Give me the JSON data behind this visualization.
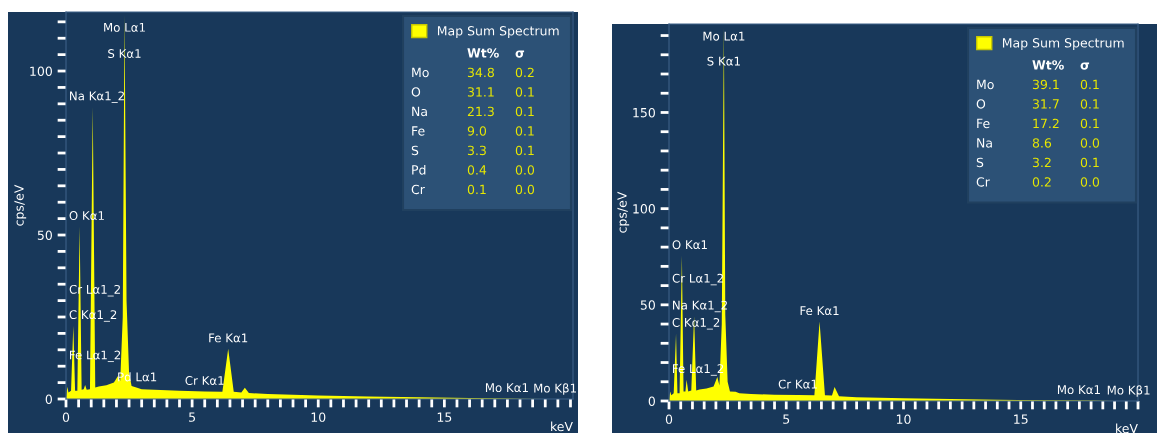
{
  "chart_data": [
    {
      "type": "area",
      "xlabel": "keV",
      "ylabel": "cps/eV",
      "legend": "top right",
      "x": [
        0,
        0.05,
        0.1,
        0.2,
        0.29,
        0.36,
        0.45,
        0.54,
        0.62,
        0.7,
        0.76,
        0.82,
        0.95,
        1.06,
        1.16,
        1.3,
        1.6,
        1.9,
        2.06,
        2.15,
        2.25,
        2.32,
        2.4,
        2.5,
        2.6,
        2.82,
        3.0,
        3.5,
        4.5,
        5.5,
        6.2,
        6.43,
        6.65,
        6.95,
        7.09,
        7.25,
        8,
        9,
        10,
        12,
        14,
        16,
        18,
        19,
        20
      ],
      "series": [
        {
          "name": "Map Sum Spectrum",
          "color": "#ffff00",
          "values": [
            0,
            3.7,
            2,
            2.5,
            22.3,
            2.5,
            2.5,
            52.6,
            2.8,
            3,
            4.3,
            2.8,
            3,
            89,
            3.5,
            3.8,
            4.2,
            5,
            7,
            5.5,
            25,
            117,
            30,
            8,
            4,
            3.4,
            3,
            2.8,
            2.5,
            2.3,
            2.2,
            15.3,
            2.2,
            2.0,
            3.4,
            1.8,
            1.5,
            1.3,
            1.1,
            0.8,
            0.5,
            0.3,
            0.1,
            0,
            0
          ]
        }
      ],
      "xlim": [
        0,
        20.1
      ],
      "ylim": [
        0,
        118
      ],
      "xticks": [
        0,
        {
          "value": 0.5,
          "label": null
        },
        {
          "value": 1,
          "label": null
        },
        {
          "value": 1.5,
          "label": null
        },
        {
          "value": 2,
          "label": null
        },
        {
          "value": 2.5,
          "label": null
        },
        {
          "value": 3,
          "label": null
        },
        {
          "value": 3.5,
          "label": null
        },
        {
          "value": 4,
          "label": null
        },
        {
          "value": 4.5,
          "label": null
        },
        5,
        {
          "value": 5.5,
          "label": null
        },
        {
          "value": 6,
          "label": null
        },
        {
          "value": 6.5,
          "label": null
        },
        {
          "value": 7,
          "label": null
        },
        {
          "value": 7.5,
          "label": null
        },
        {
          "value": 8,
          "label": null
        },
        {
          "value": 8.5,
          "label": null
        },
        {
          "value": 9,
          "label": null
        },
        {
          "value": 9.5,
          "label": null
        },
        10,
        {
          "value": 10.5,
          "label": null
        },
        {
          "value": 11,
          "label": null
        },
        {
          "value": 11.5,
          "label": null
        },
        {
          "value": 12,
          "label": null
        },
        {
          "value": 12.5,
          "label": null
        },
        {
          "value": 13,
          "label": null
        },
        {
          "value": 13.5,
          "label": null
        },
        {
          "value": 14,
          "label": null
        },
        {
          "value": 14.5,
          "label": null
        },
        15,
        {
          "value": 15.5,
          "label": null
        },
        {
          "value": 16,
          "label": null
        },
        {
          "value": 16.5,
          "label": null
        },
        {
          "value": 17,
          "label": null
        },
        {
          "value": 17.5,
          "label": null
        },
        {
          "value": 18,
          "label": null
        },
        {
          "value": 18.5,
          "label": null
        },
        {
          "value": 19,
          "label": null
        },
        {
          "value": 19.5,
          "label": null
        },
        {
          "value": 20,
          "label": null
        }
      ],
      "yticks": [
        0,
        {
          "value": 5,
          "label": null
        },
        {
          "value": 10,
          "label": null
        },
        {
          "value": 15,
          "label": null
        },
        {
          "value": 20,
          "label": null
        },
        {
          "value": 25,
          "label": null
        },
        {
          "value": 30,
          "label": null
        },
        {
          "value": 35,
          "label": null
        },
        {
          "value": 40,
          "label": null
        },
        {
          "value": 45,
          "label": null
        },
        50,
        {
          "value": 55,
          "label": null
        },
        {
          "value": 60,
          "label": null
        },
        {
          "value": 65,
          "label": null
        },
        {
          "value": 70,
          "label": null
        },
        {
          "value": 75,
          "label": null
        },
        {
          "value": 80,
          "label": null
        },
        {
          "value": 85,
          "label": null
        },
        {
          "value": 90,
          "label": null
        },
        {
          "value": 95,
          "label": null
        },
        100,
        {
          "value": 105,
          "label": null
        },
        {
          "value": 110,
          "label": null
        },
        {
          "value": 115,
          "label": null
        }
      ],
      "annotations": [
        {
          "text": "Mo Lα1",
          "x": 2.32,
          "y": 110
        },
        {
          "text": "S Kα1",
          "x": 2.32,
          "y": 102
        },
        {
          "text": "Na Kα1_2",
          "x": 1.06,
          "y": 89
        },
        {
          "text": "O Kα1",
          "x": 0.54,
          "y": 52.6
        },
        {
          "text": "Cr Lα1_2",
          "x": 0.5,
          "y": 30
        },
        {
          "text": "C Kα1_2",
          "x": 0.29,
          "y": 22.3
        },
        {
          "text": "Fe Lα1_2",
          "x": 0.234,
          "y": 10
        },
        {
          "text": "Pd Lα1",
          "x": 2.82,
          "y": 3.4
        },
        {
          "text": "Cr Kα1",
          "x": 5.5,
          "y": 2.3
        },
        {
          "text": "Fe Kα1",
          "x": 6.43,
          "y": 15.3
        },
        {
          "text": "Mo Kα1",
          "x": 17.48,
          "y": 0.15
        },
        {
          "text": "Mo Kβ1",
          "x": 19.6,
          "y": 0
        },
        "Wt%",
        "σ",
        "Mo",
        "34.8",
        "0.2",
        "O",
        "31.1",
        "0.1",
        "Na",
        "21.3",
        "0.1",
        "Fe",
        "9.0",
        "0.1",
        "S",
        "3.3",
        "0.1",
        "Pd",
        "0.4",
        "0.0",
        "Cr",
        "0.1",
        "0.0"
      ]
    },
    {
      "type": "area",
      "xlabel": "keV",
      "ylabel": "cps/eV",
      "legend": "top right",
      "x": [
        0,
        0.05,
        0.1,
        0.2,
        0.3,
        0.36,
        0.45,
        0.55,
        0.62,
        0.7,
        0.75,
        0.82,
        0.95,
        1.07,
        1.16,
        1.3,
        1.6,
        1.9,
        2.06,
        2.15,
        2.25,
        2.34,
        2.4,
        2.5,
        2.6,
        2.84,
        3.0,
        3.5,
        4.5,
        5.5,
        6.2,
        6.42,
        6.65,
        6.95,
        7.06,
        7.25,
        8,
        9,
        10,
        12,
        14,
        16,
        18,
        19,
        20
      ],
      "series": [
        {
          "name": "Map Sum Spectrum",
          "color": "#ffff00",
          "values": [
            0,
            5,
            3,
            4,
            35,
            4,
            4,
            75.6,
            5,
            5,
            11,
            5,
            5.5,
            44,
            5.5,
            6,
            6.5,
            7.5,
            12.5,
            8,
            40,
            194,
            45,
            10,
            5,
            4.8,
            4,
            3.6,
            3.3,
            3.1,
            3,
            41.3,
            3,
            2.8,
            7.3,
            2.5,
            2,
            1.7,
            1.4,
            1,
            0.7,
            0.4,
            0.2,
            0,
            0
          ]
        }
      ],
      "xlim": [
        0,
        20.0
      ],
      "ylim": [
        0,
        196
      ],
      "xticks": [
        0,
        {
          "value": 0.5,
          "label": null
        },
        {
          "value": 1,
          "label": null
        },
        {
          "value": 1.5,
          "label": null
        },
        {
          "value": 2,
          "label": null
        },
        {
          "value": 2.5,
          "label": null
        },
        {
          "value": 3,
          "label": null
        },
        {
          "value": 3.5,
          "label": null
        },
        {
          "value": 4,
          "label": null
        },
        {
          "value": 4.5,
          "label": null
        },
        5,
        {
          "value": 5.5,
          "label": null
        },
        {
          "value": 6,
          "label": null
        },
        {
          "value": 6.5,
          "label": null
        },
        {
          "value": 7,
          "label": null
        },
        {
          "value": 7.5,
          "label": null
        },
        {
          "value": 8,
          "label": null
        },
        {
          "value": 8.5,
          "label": null
        },
        {
          "value": 9,
          "label": null
        },
        {
          "value": 9.5,
          "label": null
        },
        10,
        {
          "value": 10.5,
          "label": null
        },
        {
          "value": 11,
          "label": null
        },
        {
          "value": 11.5,
          "label": null
        },
        {
          "value": 12,
          "label": null
        },
        {
          "value": 12.5,
          "label": null
        },
        {
          "value": 13,
          "label": null
        },
        {
          "value": 13.5,
          "label": null
        },
        {
          "value": 14,
          "label": null
        },
        {
          "value": 14.5,
          "label": null
        },
        15,
        {
          "value": 15.5,
          "label": null
        },
        {
          "value": 16,
          "label": null
        },
        {
          "value": 16.5,
          "label": null
        },
        {
          "value": 17,
          "label": null
        },
        {
          "value": 17.5,
          "label": null
        },
        {
          "value": 18,
          "label": null
        },
        {
          "value": 18.5,
          "label": null
        },
        {
          "value": 19,
          "label": null
        },
        {
          "value": 19.5,
          "label": null
        },
        {
          "value": 20,
          "label": null
        }
      ],
      "yticks": [
        0,
        {
          "value": 10,
          "label": null
        },
        {
          "value": 20,
          "label": null
        },
        {
          "value": 30,
          "label": null
        },
        {
          "value": 40,
          "label": null
        },
        50,
        {
          "value": 60,
          "label": null
        },
        {
          "value": 70,
          "label": null
        },
        {
          "value": 80,
          "label": null
        },
        {
          "value": 90,
          "label": null
        },
        100,
        {
          "value": 110,
          "label": null
        },
        {
          "value": 120,
          "label": null
        },
        {
          "value": 130,
          "label": null
        },
        {
          "value": 140,
          "label": null
        },
        150,
        {
          "value": 160,
          "label": null
        },
        {
          "value": 170,
          "label": null
        },
        {
          "value": 180,
          "label": null
        },
        {
          "value": 190,
          "label": null
        }
      ],
      "annotations": [
        {
          "text": "Mo Lα1",
          "x": 2.34,
          "y": 184
        },
        {
          "text": "S Kα1",
          "x": 2.34,
          "y": 171
        },
        {
          "text": "O Kα1",
          "x": 0.55,
          "y": 75.6
        },
        {
          "text": "Na Kα1_2",
          "x": 1.07,
          "y": 44
        },
        {
          "text": "Cr Lα1_2",
          "x": 0.54,
          "y": 58
        },
        {
          "text": "C Kα1_2",
          "x": 0.3,
          "y": 35
        },
        {
          "text": "Fe Lα1_2",
          "x": 0.75,
          "y": 11
        },
        {
          "text": "Cr Kα1",
          "x": 5.5,
          "y": 3.1
        },
        {
          "text": "Fe Kα1",
          "x": 6.42,
          "y": 41.3
        },
        {
          "text": "Mo Kα1",
          "x": 17.48,
          "y": 0.25
        },
        {
          "text": "Mo Kβ1",
          "x": 19.6,
          "y": 0
        },
        "Wt%",
        "σ",
        "Mo",
        "39.1",
        "0.1",
        "O",
        "31.7",
        "0.1",
        "Fe",
        "17.2",
        "0.1",
        "Na",
        "8.6",
        "0.0",
        "S",
        "3.2",
        "0.1",
        "Cr",
        "0.2",
        "0.0"
      ]
    }
  ]
}
